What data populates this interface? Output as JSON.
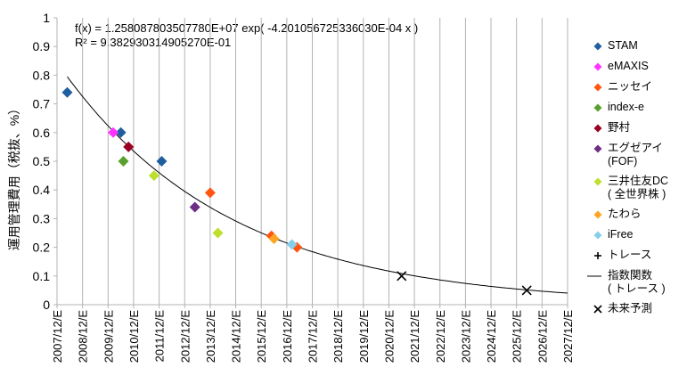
{
  "chart_data": {
    "type": "scatter",
    "ylabel": "運用管理費用（税抜、%）",
    "xlabel": "",
    "ylim": [
      0,
      1
    ],
    "yticks": [
      "0",
      "0.1",
      "0.2",
      "0.3",
      "0.4",
      "0.5",
      "0.6",
      "0.7",
      "0.8",
      "0.9",
      "1"
    ],
    "x_categories": [
      "2007/12/E",
      "2008/12/E",
      "2009/12/E",
      "2010/12/E",
      "2011/12/E",
      "2012/12/E",
      "2013/12/E",
      "2014/12/E",
      "2015/12/E",
      "2016/12/E",
      "2017/12/E",
      "2018/12/E",
      "2019/12/E",
      "2020/12/E",
      "2021/12/E",
      "2022/12/E",
      "2023/12/E",
      "2024/12/E",
      "2025/12/E",
      "2026/12/E",
      "2027/12/E"
    ],
    "grid": "vertical",
    "legend_position": "right",
    "equation": "f(x) = 1.258087803507780E+07 exp( -4.201056725336030E-04 x )",
    "r_squared": "R² = 9.382930314905270E-01",
    "series": [
      {
        "name": "STAM",
        "color": "#1f5fa0",
        "marker": "diamond",
        "points": [
          [
            2007.9,
            0.74
          ],
          [
            2010.0,
            0.6
          ],
          [
            2011.6,
            0.5
          ]
        ]
      },
      {
        "name": "eMAXIS",
        "color": "#ff33ff",
        "marker": "diamond",
        "points": [
          [
            2009.7,
            0.6
          ]
        ]
      },
      {
        "name": "ニッセイ",
        "color": "#ff5511",
        "marker": "diamond",
        "points": [
          [
            2013.5,
            0.39
          ],
          [
            2015.9,
            0.24
          ],
          [
            2016.9,
            0.2
          ]
        ]
      },
      {
        "name": "index-e",
        "color": "#5aa02c",
        "marker": "diamond",
        "points": [
          [
            2010.1,
            0.5
          ]
        ]
      },
      {
        "name": "野村",
        "color": "#990022",
        "marker": "diamond",
        "points": [
          [
            2010.3,
            0.55
          ]
        ]
      },
      {
        "name": "エグゼアイ\n(FOF)",
        "color": "#6d2e86",
        "marker": "diamond",
        "points": [
          [
            2012.9,
            0.34
          ]
        ]
      },
      {
        "name": "三井住友DC\n( 全世界株 )",
        "color": "#bde02e",
        "marker": "diamond",
        "points": [
          [
            2011.3,
            0.45
          ],
          [
            2013.8,
            0.25
          ]
        ]
      },
      {
        "name": "たわら",
        "color": "#ffa521",
        "marker": "diamond",
        "points": [
          [
            2016.0,
            0.23
          ]
        ]
      },
      {
        "name": "iFree",
        "color": "#87ceeb",
        "marker": "diamond",
        "points": [
          [
            2016.7,
            0.21
          ]
        ]
      },
      {
        "name": "トレース",
        "color": "#000000",
        "marker": "plus",
        "points": []
      },
      {
        "name": "指数関数\n( トレース )",
        "color": "#000000",
        "marker": "line",
        "points": []
      },
      {
        "name": "未来予測",
        "color": "#000000",
        "marker": "x",
        "points": [
          [
            2021.0,
            0.1
          ],
          [
            2025.9,
            0.05
          ]
        ]
      }
    ],
    "trend": {
      "a": 0.795,
      "b": 0.152,
      "x0": 2007.9
    }
  }
}
